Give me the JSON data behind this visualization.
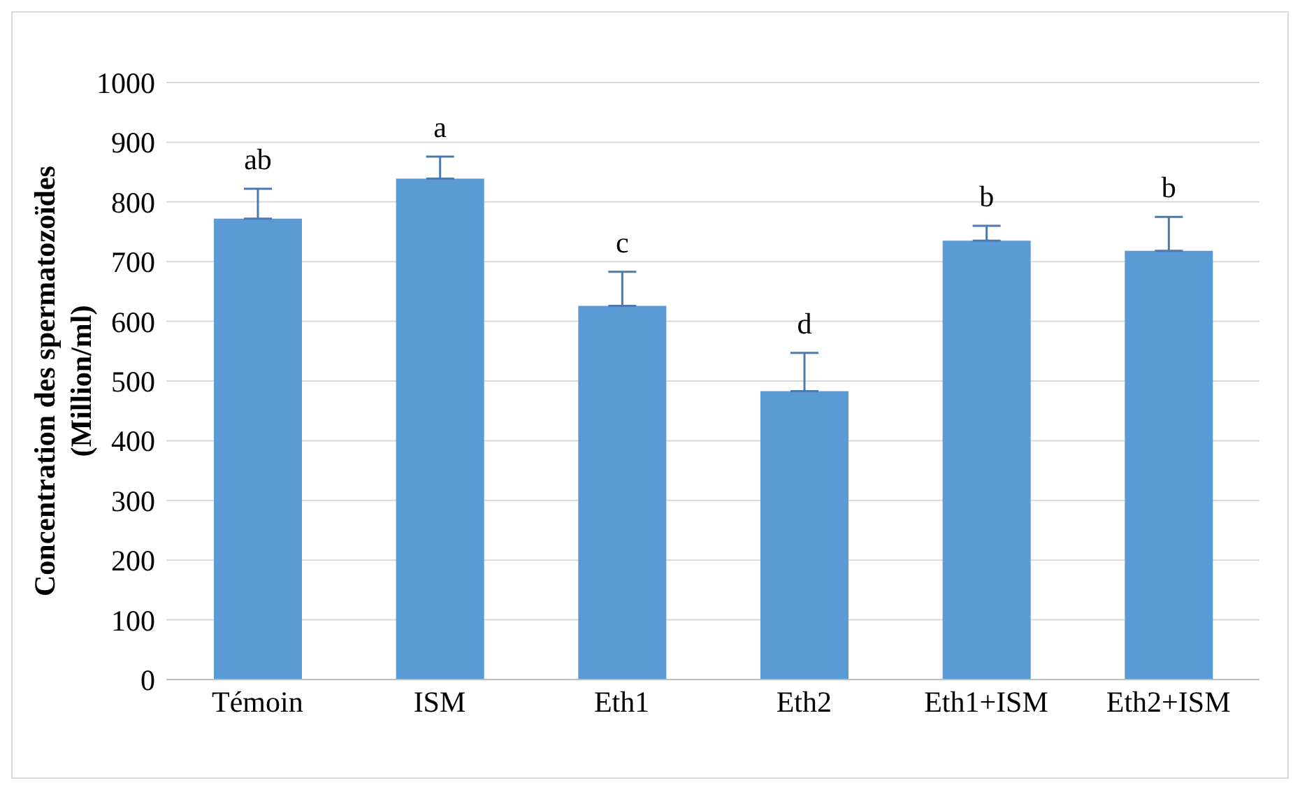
{
  "chart_data": {
    "type": "bar",
    "ylabel": "Concentration des spermatozoïdes\n(Million/ml)",
    "categories": [
      "Témoin",
      "ISM",
      "Eth1",
      "Eth2",
      "Eth1+ISM",
      "Eth2+ISM"
    ],
    "values": [
      772,
      839,
      626,
      483,
      735,
      718
    ],
    "errors": [
      [
        772,
        822
      ],
      [
        839,
        876
      ],
      [
        626,
        683
      ],
      [
        483,
        547
      ],
      [
        735,
        760
      ],
      [
        718,
        775
      ]
    ],
    "value_labels": [
      "ab",
      "a",
      "c",
      "d",
      "b",
      "b"
    ],
    "color": "#5b9bd5",
    "ylim": [
      0,
      1000
    ],
    "yticks": [
      0,
      100,
      200,
      300,
      400,
      500,
      600,
      700,
      800,
      900,
      1000
    ],
    "grid": "y"
  }
}
